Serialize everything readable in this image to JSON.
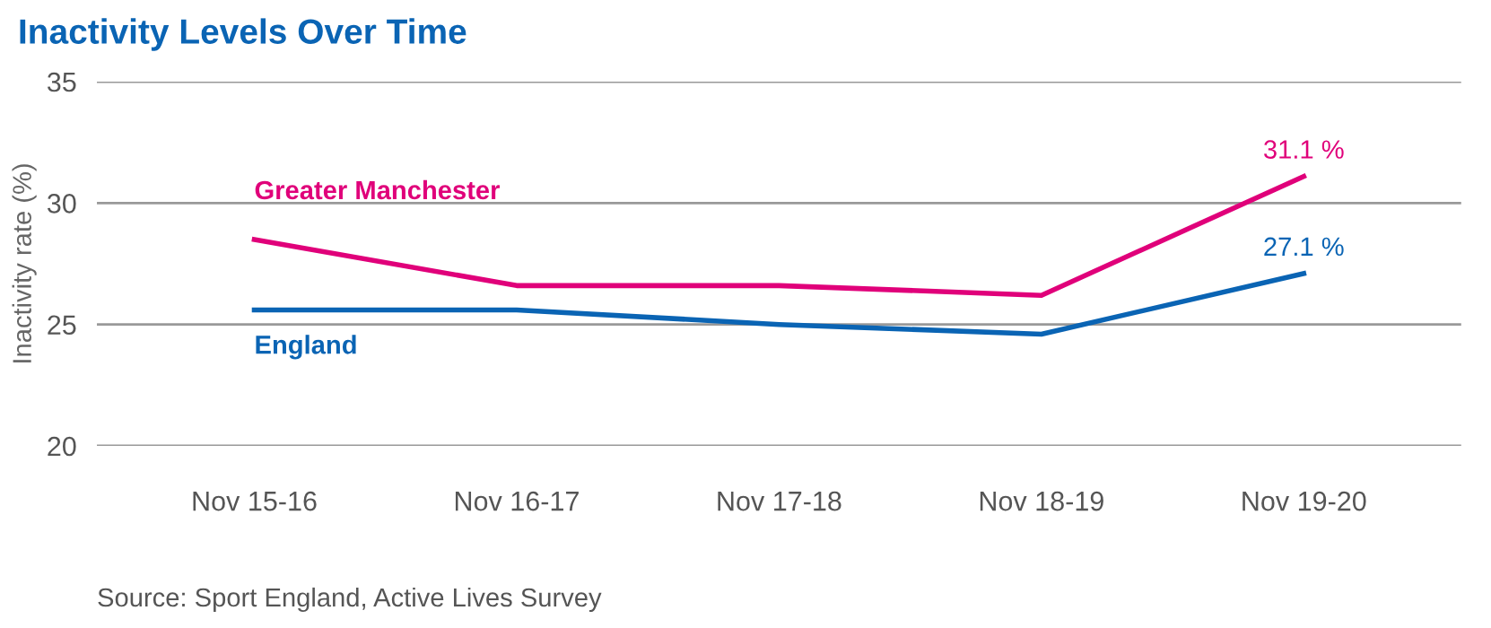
{
  "chart_data": {
    "type": "line",
    "title": "Inactivity Levels Over Time",
    "ylabel": "Inactivity rate (%)",
    "categories": [
      "Nov 15-16",
      "Nov 16-17",
      "Nov 17-18",
      "Nov 18-19",
      "Nov 19-20"
    ],
    "series": [
      {
        "name": "Greater Manchester",
        "color": "#e0007a",
        "values": [
          28.5,
          26.6,
          26.6,
          26.2,
          31.1
        ],
        "value_labels": [
          null,
          null,
          null,
          null,
          "31.1 %"
        ]
      },
      {
        "name": "England",
        "color": "#0a64b4",
        "values": [
          25.6,
          25.6,
          25.0,
          24.6,
          27.1
        ],
        "value_labels": [
          null,
          null,
          null,
          null,
          "27.1 %"
        ]
      }
    ],
    "ylim": [
      20,
      35
    ],
    "yticks": [
      20,
      25,
      30,
      35
    ],
    "grid": "y",
    "legend": false,
    "marker": "none",
    "line_style": "solid",
    "annotations": [
      "Source: Sport England, Active Lives Survey"
    ]
  }
}
